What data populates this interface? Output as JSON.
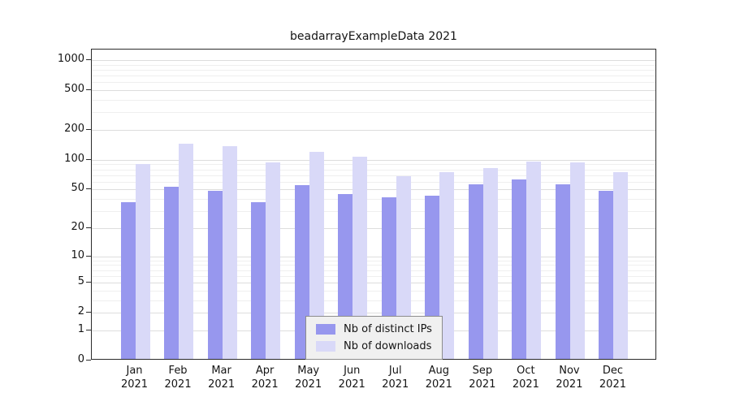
{
  "title": "beadarrayExampleData 2021",
  "axes": {
    "y_tick_values": [
      0,
      1,
      2,
      5,
      10,
      20,
      50,
      100,
      200,
      500,
      1000
    ]
  },
  "chart_data": {
    "type": "bar",
    "title": "beadarrayExampleData 2021",
    "categories": [
      "Jan 2021",
      "Feb 2021",
      "Mar 2021",
      "Apr 2021",
      "May 2021",
      "Jun 2021",
      "Jul 2021",
      "Aug 2021",
      "Sep 2021",
      "Oct 2021",
      "Nov 2021",
      "Dec 2021"
    ],
    "series": [
      {
        "name": "Nb of distinct IPs",
        "color": "#9797ee",
        "values": [
          36,
          51,
          47,
          36,
          53,
          43,
          40,
          42,
          54,
          61,
          54,
          47
        ]
      },
      {
        "name": "Nb of downloads",
        "color": "#d9d9f8",
        "values": [
          88,
          140,
          132,
          91,
          115,
          104,
          66,
          72,
          80,
          93,
          91,
          73
        ]
      }
    ],
    "xlabel": "",
    "ylabel": "",
    "y_scale": "log1p",
    "y_ticks": [
      0,
      1,
      2,
      5,
      10,
      20,
      50,
      100,
      200,
      500,
      1000
    ],
    "ylim": [
      0,
      1000
    ],
    "grid": true,
    "legend_position": "inside-bottom-center"
  }
}
